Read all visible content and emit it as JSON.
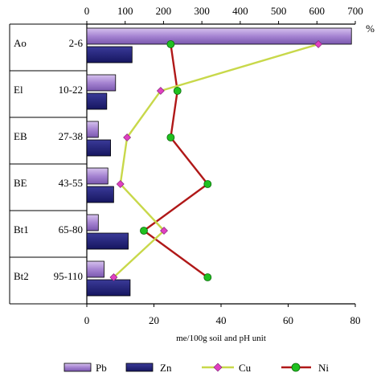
{
  "chart_data": {
    "type": "bar",
    "orientation": "horizontal",
    "categories": [
      {
        "horizon": "Ao",
        "depth": "2-6"
      },
      {
        "horizon": "El",
        "depth": "10-22"
      },
      {
        "horizon": "EB",
        "depth": "27-38"
      },
      {
        "horizon": "BE",
        "depth": "43-55"
      },
      {
        "horizon": "Bt1",
        "depth": "65-80"
      },
      {
        "horizon": "Bt2",
        "depth": "95-110"
      }
    ],
    "top_axis": {
      "ticks": [
        "0",
        "100",
        "200",
        "300",
        "400",
        "500",
        "600",
        "700"
      ],
      "range": [
        0,
        700
      ],
      "unit_label": "%"
    },
    "bottom_axis": {
      "ticks": [
        "0",
        "20",
        "40",
        "60",
        "80"
      ],
      "range": [
        0,
        80
      ],
      "label": "me/100g soil and pH unit"
    },
    "series": [
      {
        "name": "Pb",
        "kind": "bar",
        "axis": "top",
        "color": "#b89ad8",
        "values": [
          690,
          75,
          30,
          55,
          30,
          45
        ]
      },
      {
        "name": "Zn",
        "kind": "bar",
        "axis": "top",
        "color": "#26267a",
        "values": [
          118,
          52,
          62,
          70,
          108,
          113
        ]
      },
      {
        "name": "Cu",
        "kind": "line",
        "axis": "bottom",
        "color": "#c8d84a",
        "marker_color": "#e040c0",
        "values": [
          69,
          22,
          12,
          10,
          23,
          8
        ]
      },
      {
        "name": "Ni",
        "kind": "line",
        "axis": "bottom",
        "color": "#b01818",
        "marker_color": "#20c020",
        "values": [
          25,
          27,
          25,
          36,
          17,
          36
        ]
      }
    ],
    "grid": false,
    "legend": "bottom"
  }
}
